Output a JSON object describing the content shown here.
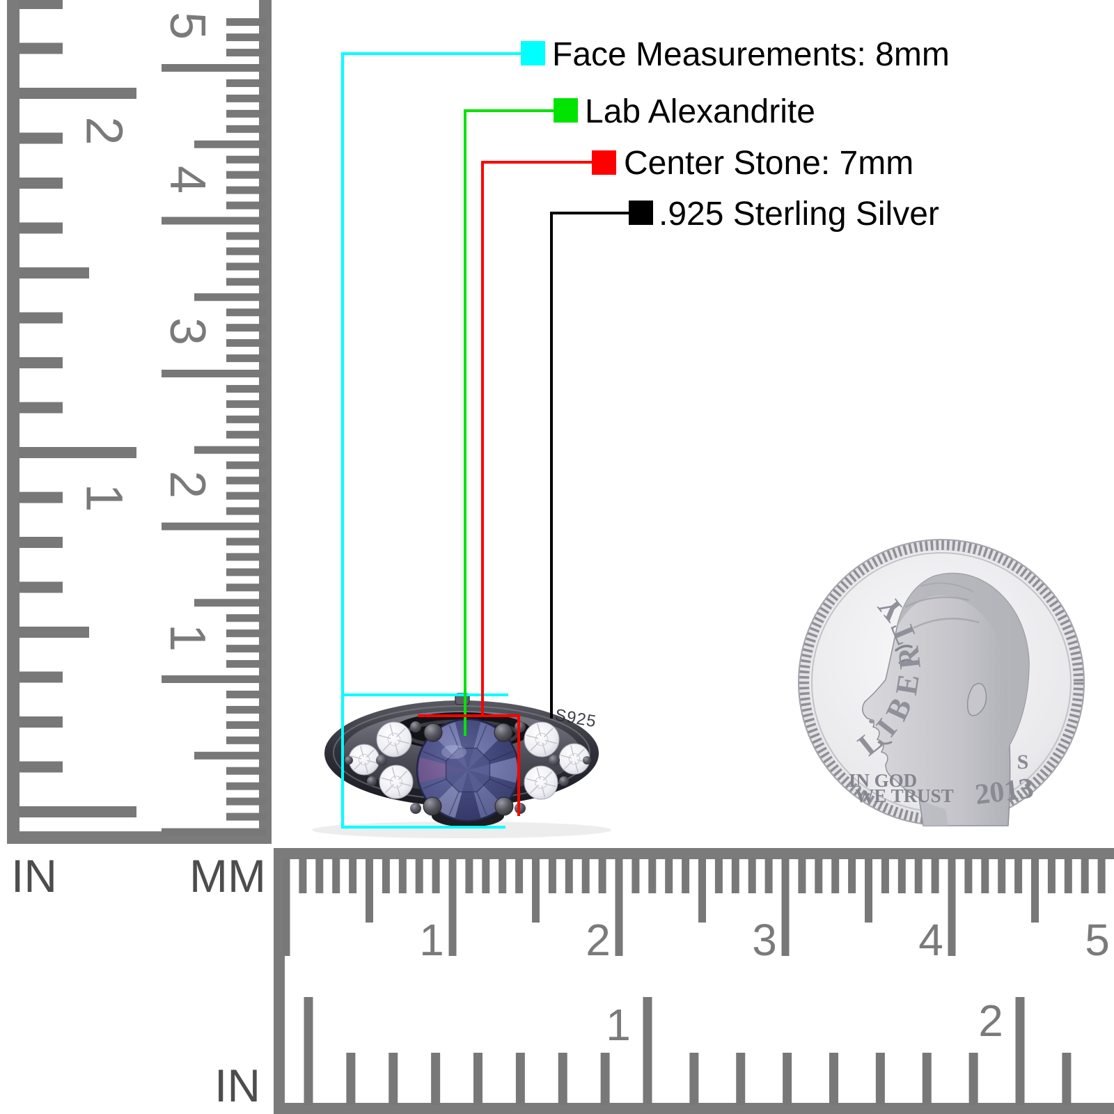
{
  "annotations": {
    "items": [
      {
        "id": "face-measurements",
        "label": "Face Measurements: 8mm",
        "color": "#00FFFF"
      },
      {
        "id": "stone-type",
        "label": "Lab Alexandrite",
        "color": "#00E400"
      },
      {
        "id": "center-stone",
        "label": "Center Stone: 7mm",
        "color": "#FF0000"
      },
      {
        "id": "metal",
        "label": ".925 Sterling Silver",
        "color": "#000000"
      }
    ]
  },
  "ring": {
    "engraving": "S925"
  },
  "coin": {
    "legend": "LIBERTY",
    "motto_line1": "IN GOD",
    "motto_line2": "WE TRUST",
    "mint_mark": "S",
    "year": "2013"
  },
  "rulers": {
    "left_inch": {
      "label": "IN",
      "numbers": [
        "1",
        "2"
      ]
    },
    "left_mm": {
      "label": "MM",
      "numbers": [
        "1",
        "2",
        "3",
        "4",
        "5"
      ]
    },
    "bottom_mm": {
      "numbers": [
        "1",
        "2",
        "3",
        "4",
        "5"
      ]
    },
    "bottom_inch": {
      "label": "IN",
      "numbers": [
        "1",
        "2"
      ]
    }
  }
}
